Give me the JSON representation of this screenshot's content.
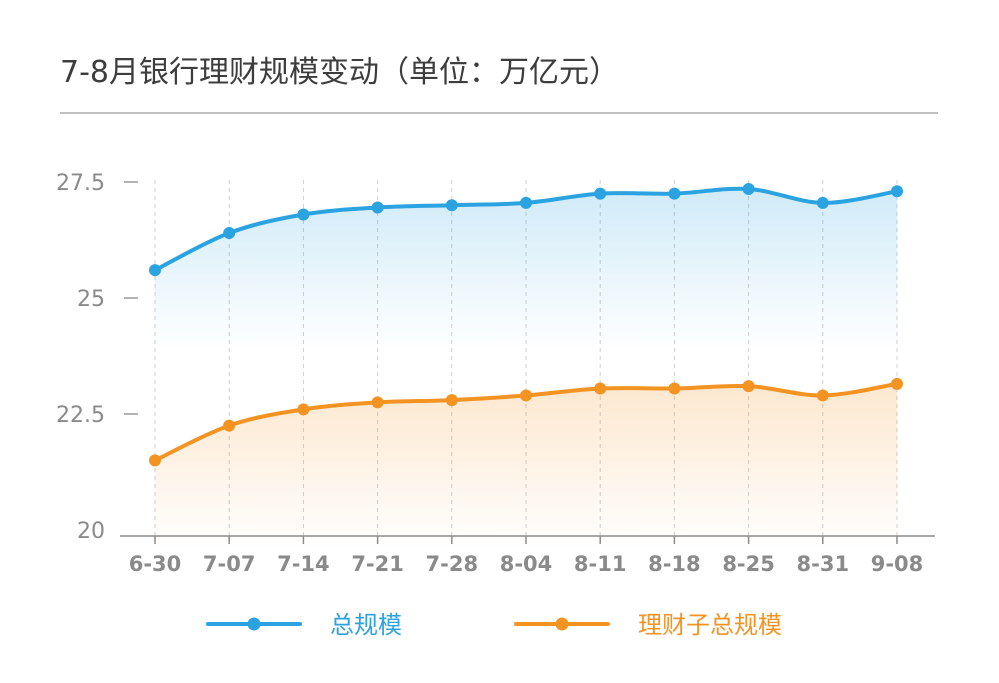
{
  "chart_data": {
    "type": "line",
    "title": "7-8月银行理财规模变动（单位：万亿元）",
    "categories": [
      "6-30",
      "7-07",
      "7-14",
      "7-21",
      "7-28",
      "8-04",
      "8-11",
      "8-18",
      "8-25",
      "8-31",
      "9-08"
    ],
    "yticks": [
      "27.5",
      "25",
      "22.5",
      "20"
    ],
    "ytick_values": [
      27.5,
      25,
      22.5,
      20
    ],
    "ylim": [
      20,
      28.5
    ],
    "series": [
      {
        "name": "总规模",
        "color": "#2aa3e0",
        "values": [
          25.6,
          26.4,
          26.8,
          26.95,
          27.0,
          27.05,
          27.25,
          27.25,
          27.35,
          27.05,
          27.3
        ]
      },
      {
        "name": "理财子总规模",
        "color": "#f39422",
        "values": [
          21.5,
          22.25,
          22.6,
          22.75,
          22.8,
          22.9,
          23.05,
          23.05,
          23.1,
          22.9,
          23.15
        ]
      }
    ],
    "legend_position": "bottom"
  }
}
